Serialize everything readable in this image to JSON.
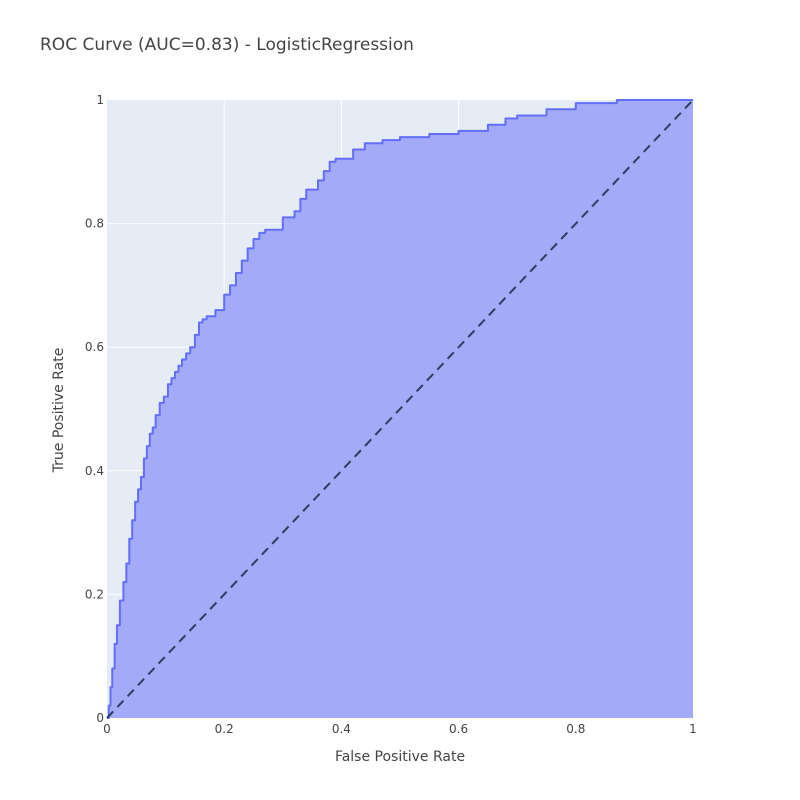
{
  "chart_data": {
    "type": "area",
    "title": "ROC Curve (AUC=0.83) - LogisticRegression",
    "xlabel": "False Positive Rate",
    "ylabel": "True Positive Rate",
    "xlim": [
      0,
      1
    ],
    "ylim": [
      0,
      1
    ],
    "grid": true,
    "legend": "none",
    "x_ticks": [
      "0",
      "0.2",
      "0.4",
      "0.6",
      "0.8",
      "1"
    ],
    "y_ticks": [
      "0",
      "0.2",
      "0.4",
      "0.6",
      "0.8",
      "1"
    ],
    "series": [
      {
        "line_color": "#636efa",
        "fill_color": "#a3aaf7",
        "x": [
          0,
          0.003,
          0.006,
          0.009,
          0.013,
          0.017,
          0.022,
          0.028,
          0.033,
          0.038,
          0.043,
          0.048,
          0.053,
          0.058,
          0.063,
          0.068,
          0.073,
          0.078,
          0.083,
          0.09,
          0.097,
          0.104,
          0.11,
          0.116,
          0.122,
          0.128,
          0.135,
          0.142,
          0.15,
          0.157,
          0.163,
          0.17,
          0.185,
          0.2,
          0.21,
          0.22,
          0.23,
          0.24,
          0.25,
          0.26,
          0.27,
          0.3,
          0.32,
          0.33,
          0.34,
          0.36,
          0.37,
          0.38,
          0.39,
          0.42,
          0.44,
          0.47,
          0.5,
          0.55,
          0.6,
          0.65,
          0.68,
          0.7,
          0.75,
          0.8,
          0.87,
          1.0
        ],
        "y": [
          0,
          0.02,
          0.05,
          0.08,
          0.12,
          0.15,
          0.19,
          0.22,
          0.25,
          0.29,
          0.32,
          0.35,
          0.37,
          0.39,
          0.42,
          0.44,
          0.46,
          0.47,
          0.49,
          0.51,
          0.52,
          0.54,
          0.55,
          0.56,
          0.57,
          0.58,
          0.59,
          0.6,
          0.62,
          0.64,
          0.645,
          0.65,
          0.66,
          0.685,
          0.7,
          0.72,
          0.74,
          0.76,
          0.775,
          0.785,
          0.79,
          0.81,
          0.82,
          0.84,
          0.855,
          0.87,
          0.885,
          0.9,
          0.905,
          0.92,
          0.93,
          0.935,
          0.94,
          0.945,
          0.95,
          0.96,
          0.97,
          0.975,
          0.985,
          0.995,
          1.0,
          1.0
        ]
      },
      {
        "line_color": "#2a3f5f",
        "dash": true,
        "x": [
          0,
          1
        ],
        "y": [
          0,
          1
        ]
      }
    ]
  }
}
